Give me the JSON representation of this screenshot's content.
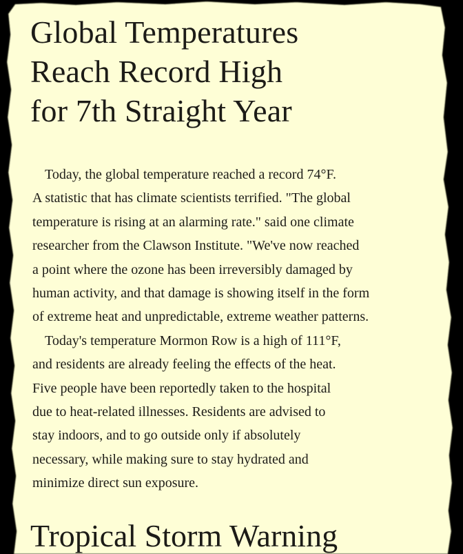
{
  "colors": {
    "background": "#000000",
    "paper": "#fefed6",
    "text": "#1c1b17"
  },
  "article": {
    "headline_lines": [
      "Global Temperatures",
      "Reach Record High",
      "for 7th Straight Year"
    ],
    "body_lines": [
      "Today, the global temperature reached a record 74°F.",
      "A statistic that has climate scientists terrified. \"The global",
      "temperature is rising at an alarming rate.\" said one climate",
      "researcher from the Clawson Institute. \"We've now reached",
      "a point where the ozone has been irreversibly damaged by",
      "human activity, and that damage is showing itself in the form",
      "of extreme heat and unpredictable, extreme weather patterns.",
      "Today's temperature Mormon Row is a high of 111°F,",
      "and residents are already feeling the effects of the heat.",
      "Five people have been reportedly taken to the hospital",
      "due to heat-related illnesses. Residents are advised to",
      "stay indoors, and to go outside only if absolutely",
      "necessary, while making sure to stay hydrated and",
      "minimize direct sun exposure."
    ]
  },
  "next_article": {
    "headline": "Tropical Storm Warning"
  }
}
